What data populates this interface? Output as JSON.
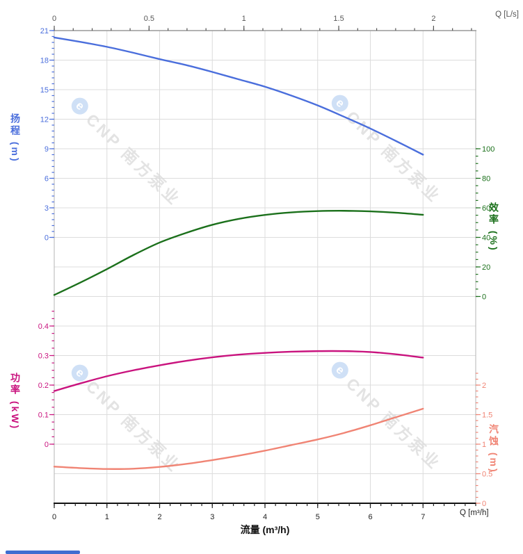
{
  "watermark": {
    "text": "CNP 南方泵业",
    "logo_char": "e",
    "logo_color": "#cfe0f6",
    "text_color": "#e3e3e3"
  },
  "footer": {
    "partial_logo_color": "#3f6dd0"
  },
  "chart_data": {
    "type": "line",
    "grid": true,
    "legend_position": "none",
    "x_axis_bottom": {
      "label": "流量 (m³/h)",
      "corner_label": "Q [m³/h]",
      "range": [
        0,
        8
      ],
      "major_ticks": [
        0,
        1,
        2,
        3,
        4,
        5,
        6,
        7
      ],
      "minor_step": 0.2,
      "color": "#222222"
    },
    "x_axis_top": {
      "corner_label": "Q [L/s]",
      "range": [
        0,
        2.22
      ],
      "major_ticks": [
        0,
        0.5,
        1,
        1.5,
        2
      ],
      "minor_step": 0.1,
      "color": "#555555",
      "m3h_per_unit": 3.6
    },
    "y_axes": [
      {
        "id": "head",
        "title": "扬程 (m)",
        "side": "left",
        "color": "#4a6edc",
        "range": [
          0,
          21.3
        ],
        "major_ticks": [
          21,
          18,
          15,
          12,
          9,
          6,
          3,
          0
        ],
        "minor_step": 0.6,
        "minor_range": [
          0,
          21
        ],
        "value_per_grid_row": 3,
        "zero_row": 7
      },
      {
        "id": "eff",
        "title": "效率 (%)",
        "side": "right",
        "color": "#1b701b",
        "range": [
          0,
          100
        ],
        "major_ticks": [
          100,
          80,
          60,
          40,
          20,
          0
        ],
        "minor_step": 5,
        "minor_range": [
          0,
          100
        ],
        "value_per_grid_row": 20,
        "zero_row": 9
      },
      {
        "id": "power",
        "title": "功率 (kW)",
        "side": "left",
        "color": "#c9137e",
        "range": [
          0,
          0.45
        ],
        "major_ticks": [
          0.4,
          0.3,
          0.2,
          0.1,
          0
        ],
        "minor_step": 0.025,
        "minor_range": [
          0,
          0.45
        ],
        "value_per_grid_row": 0.1,
        "zero_row": 14
      },
      {
        "id": "npsh",
        "title": "汽蚀 (m)",
        "side": "right",
        "color": "#f08474",
        "range": [
          0,
          2.2
        ],
        "major_ticks": [
          2,
          1.5,
          1,
          0.5,
          0
        ],
        "minor_step": 0.1,
        "minor_range": [
          0,
          2.2
        ],
        "value_per_grid_row": 0.5,
        "zero_row": 16
      }
    ],
    "series": [
      {
        "name": "扬程",
        "axis": "head",
        "color": "#4a6edc",
        "x": [
          0,
          0.5,
          1,
          1.5,
          2,
          2.5,
          3,
          3.5,
          4,
          4.5,
          5,
          5.5,
          6,
          6.5,
          7
        ],
        "y": [
          20.3,
          19.85,
          19.35,
          18.75,
          18.1,
          17.5,
          16.8,
          16.05,
          15.3,
          14.4,
          13.4,
          12.25,
          11.05,
          9.75,
          8.4
        ]
      },
      {
        "name": "效率",
        "axis": "eff",
        "color": "#1b701b",
        "x": [
          0,
          0.5,
          1,
          1.5,
          2,
          2.5,
          3,
          3.5,
          4,
          4.5,
          5,
          5.5,
          6,
          6.5,
          7
        ],
        "y": [
          1,
          9.5,
          18.5,
          28,
          36.5,
          43,
          48.5,
          52.5,
          55.2,
          56.9,
          57.8,
          58,
          57.6,
          56.7,
          55.3
        ]
      },
      {
        "name": "功率",
        "axis": "power",
        "color": "#c9137e",
        "x": [
          0,
          0.5,
          1,
          1.5,
          2,
          2.5,
          3,
          3.5,
          4,
          4.5,
          5,
          5.5,
          6,
          6.5,
          7
        ],
        "y": [
          0.18,
          0.206,
          0.23,
          0.25,
          0.267,
          0.282,
          0.294,
          0.303,
          0.309,
          0.313,
          0.315,
          0.315,
          0.312,
          0.304,
          0.293
        ]
      },
      {
        "name": "汽蚀",
        "axis": "npsh",
        "color": "#f08474",
        "x": [
          0,
          0.5,
          1,
          1.5,
          2,
          2.5,
          3,
          3.5,
          4,
          4.5,
          5,
          5.5,
          6,
          6.5,
          7
        ],
        "y": [
          0.62,
          0.595,
          0.58,
          0.585,
          0.615,
          0.665,
          0.73,
          0.805,
          0.89,
          0.985,
          1.08,
          1.19,
          1.32,
          1.46,
          1.6
        ]
      }
    ]
  }
}
